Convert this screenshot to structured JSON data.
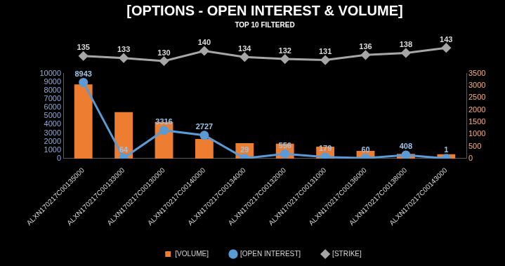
{
  "chart_data": {
    "type": "bar",
    "title": "[OPTIONS - OPEN INTEREST & VOLUME]",
    "subtitle": "TOP 10 FILTERED",
    "categories": [
      "ALXN170217C00135000",
      "ALXN170217C00133000",
      "ALXN170217C00130000",
      "ALXN170217C00140000",
      "ALXN170217C00134000",
      "ALXN170217C00132000",
      "ALXN170217C00131000",
      "ALXN170217C00136000",
      "ALXN170217C00138000",
      "ALXN170217C00143000"
    ],
    "series": [
      {
        "name": "[VOLUME]",
        "type": "bar",
        "color": "#ed7d31",
        "values": [
          8700,
          5450,
          4300,
          2300,
          1800,
          1750,
          1400,
          900,
          550,
          500
        ]
      },
      {
        "name": "[OPEN INTEREST]",
        "type": "line",
        "color": "#5b9bd5",
        "marker": "circle",
        "data_labels": true,
        "values": [
          8943,
          64,
          3316,
          2727,
          29,
          556,
          179,
          60,
          408,
          1
        ]
      },
      {
        "name": "[STRIKE]",
        "type": "line",
        "color": "#a6a6a6",
        "marker": "diamond",
        "axis": "y3",
        "data_labels": true,
        "values": [
          135,
          133,
          130,
          140,
          134,
          132,
          131,
          136,
          138,
          143
        ]
      }
    ],
    "ylim": [
      0,
      10000
    ],
    "yticks": [
      0,
      1000,
      2000,
      3000,
      4000,
      5000,
      6000,
      7000,
      8000,
      9000,
      10000
    ],
    "y2lim": [
      0,
      3500
    ],
    "y2ticks": [
      0,
      500,
      1000,
      1500,
      2000,
      2500,
      3000,
      3500
    ],
    "grid": false,
    "legend": "bottom"
  }
}
